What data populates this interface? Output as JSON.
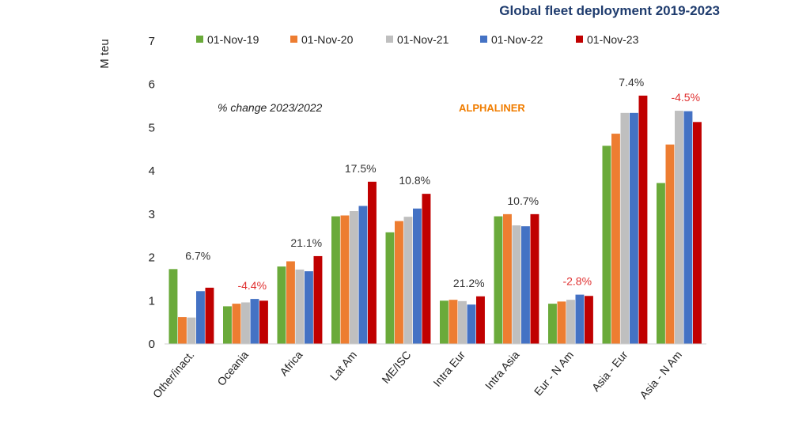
{
  "chart_data": {
    "type": "bar",
    "title": "Global fleet deployment 2019-2023",
    "ylabel": "M teu",
    "xlabel": "",
    "ylim": [
      0,
      7
    ],
    "yticks": [
      0,
      1,
      2,
      3,
      4,
      5,
      6,
      7
    ],
    "grid": false,
    "legend_position": "top",
    "categories": [
      "Other/inact.",
      "Oceania",
      "Africa",
      "Lat Am",
      "ME/ISC",
      "Intra Eur",
      "Intra Asia",
      "Eur - N Am",
      "Asia - Eur",
      "Asia - N Am"
    ],
    "series": [
      {
        "name": "01-Nov-19",
        "color": "#6aaa3a",
        "values": [
          1.73,
          0.87,
          1.79,
          2.95,
          2.58,
          1.0,
          2.95,
          0.93,
          4.58,
          3.72
        ]
      },
      {
        "name": "01-Nov-20",
        "color": "#ed7d31",
        "values": [
          0.62,
          0.93,
          1.91,
          2.97,
          2.84,
          1.02,
          3.0,
          0.98,
          4.86,
          4.61
        ]
      },
      {
        "name": "01-Nov-21",
        "color": "#bfbfbf",
        "values": [
          0.61,
          0.96,
          1.72,
          3.07,
          2.94,
          0.99,
          2.74,
          1.02,
          5.34,
          5.39
        ]
      },
      {
        "name": "01-Nov-22",
        "color": "#4472c4",
        "values": [
          1.22,
          1.04,
          1.68,
          3.19,
          3.13,
          0.91,
          2.72,
          1.14,
          5.34,
          5.38
        ]
      },
      {
        "name": "01-Nov-23",
        "color": "#c00000",
        "values": [
          1.3,
          1.0,
          2.03,
          3.75,
          3.47,
          1.1,
          3.0,
          1.11,
          5.74,
          5.13
        ]
      }
    ],
    "annotations": [
      {
        "category": "Other/inact.",
        "text": "6.7%",
        "color": "#333333"
      },
      {
        "category": "Oceania",
        "text": "-4.4%",
        "color": "#e03030"
      },
      {
        "category": "Africa",
        "text": "21.1%",
        "color": "#333333"
      },
      {
        "category": "Lat Am",
        "text": "17.5%",
        "color": "#333333"
      },
      {
        "category": "ME/ISC",
        "text": "10.8%",
        "color": "#333333"
      },
      {
        "category": "Intra Eur",
        "text": "21.2%",
        "color": "#333333"
      },
      {
        "category": "Intra Asia",
        "text": "10.7%",
        "color": "#333333"
      },
      {
        "category": "Eur - N Am",
        "text": "-2.8%",
        "color": "#e03030"
      },
      {
        "category": "Asia - Eur",
        "text": "7.4%",
        "color": "#333333"
      },
      {
        "category": "Asia - N Am",
        "text": "-4.5%",
        "color": "#e03030"
      }
    ],
    "note": "% change 2023/2022",
    "brand": "ALPHALINER",
    "brand_color": "#f07d00"
  }
}
